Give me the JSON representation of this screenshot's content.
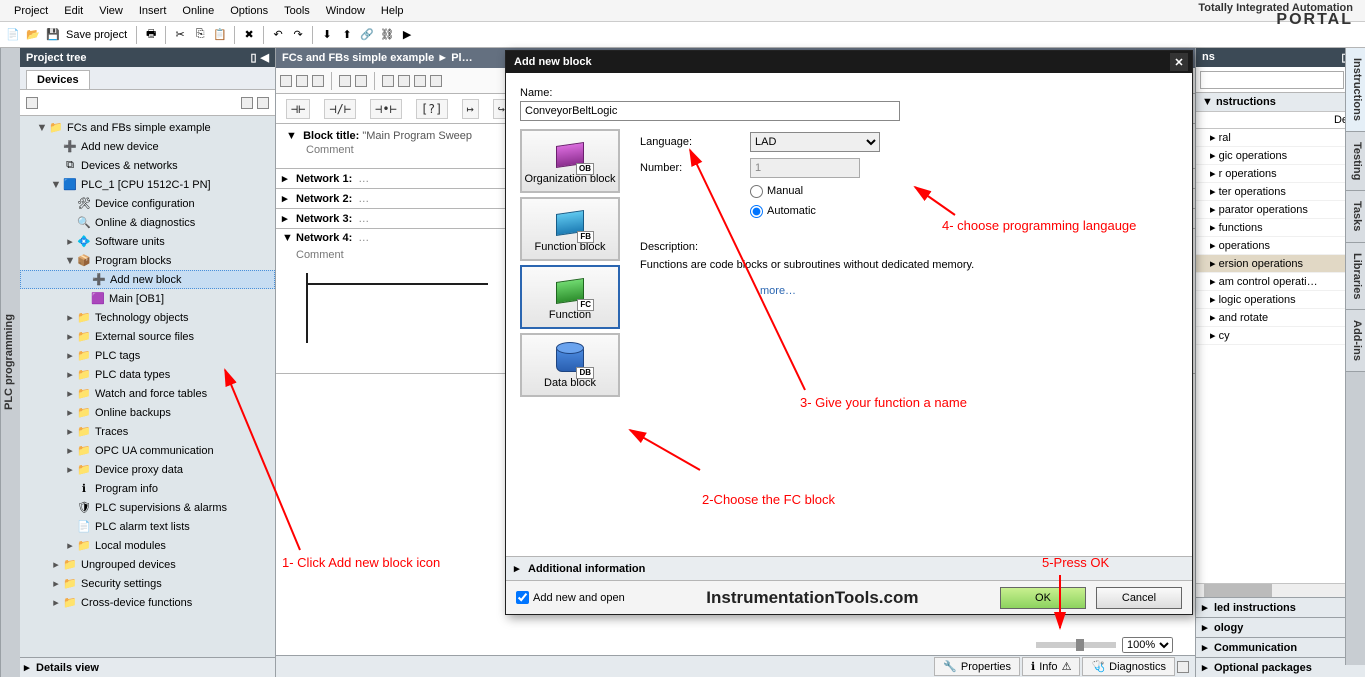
{
  "menubar": [
    "Project",
    "Edit",
    "View",
    "Insert",
    "Online",
    "Options",
    "Tools",
    "Window",
    "Help"
  ],
  "branding": {
    "line1": "Totally Integrated Automation",
    "line2": "PORTAL"
  },
  "toolbar": {
    "save": "Save project"
  },
  "leftstrip": "PLC programming",
  "project_tree": {
    "title": "Project tree",
    "devices_tab": "Devices",
    "items": [
      {
        "d": 1,
        "tw": "▼",
        "ic": "proj",
        "label": "FCs and FBs simple example"
      },
      {
        "d": 2,
        "tw": "",
        "ic": "add",
        "label": "Add new device"
      },
      {
        "d": 2,
        "tw": "",
        "ic": "net",
        "label": "Devices & networks"
      },
      {
        "d": 2,
        "tw": "▼",
        "ic": "plc",
        "label": "PLC_1 [CPU 1512C-1 PN]"
      },
      {
        "d": 3,
        "tw": "",
        "ic": "cfg",
        "label": "Device configuration"
      },
      {
        "d": 3,
        "tw": "",
        "ic": "diag",
        "label": "Online & diagnostics"
      },
      {
        "d": 3,
        "tw": "▸",
        "ic": "sw",
        "label": "Software units"
      },
      {
        "d": 3,
        "tw": "▼",
        "ic": "blk",
        "label": "Program blocks"
      },
      {
        "d": 4,
        "tw": "",
        "ic": "add",
        "label": "Add new block",
        "sel": true
      },
      {
        "d": 4,
        "tw": "",
        "ic": "ob",
        "label": "Main [OB1]"
      },
      {
        "d": 3,
        "tw": "▸",
        "ic": "fold",
        "label": "Technology objects"
      },
      {
        "d": 3,
        "tw": "▸",
        "ic": "fold",
        "label": "External source files"
      },
      {
        "d": 3,
        "tw": "▸",
        "ic": "fold",
        "label": "PLC tags"
      },
      {
        "d": 3,
        "tw": "▸",
        "ic": "fold",
        "label": "PLC data types"
      },
      {
        "d": 3,
        "tw": "▸",
        "ic": "fold",
        "label": "Watch and force tables"
      },
      {
        "d": 3,
        "tw": "▸",
        "ic": "fold",
        "label": "Online backups"
      },
      {
        "d": 3,
        "tw": "▸",
        "ic": "fold",
        "label": "Traces"
      },
      {
        "d": 3,
        "tw": "▸",
        "ic": "fold",
        "label": "OPC UA communication"
      },
      {
        "d": 3,
        "tw": "▸",
        "ic": "fold",
        "label": "Device proxy data"
      },
      {
        "d": 3,
        "tw": "",
        "ic": "info",
        "label": "Program info"
      },
      {
        "d": 3,
        "tw": "",
        "ic": "sup",
        "label": "PLC supervisions & alarms"
      },
      {
        "d": 3,
        "tw": "",
        "ic": "txt",
        "label": "PLC alarm text lists"
      },
      {
        "d": 3,
        "tw": "▸",
        "ic": "fold",
        "label": "Local modules"
      },
      {
        "d": 2,
        "tw": "▸",
        "ic": "fold",
        "label": "Ungrouped devices"
      },
      {
        "d": 2,
        "tw": "▸",
        "ic": "fold",
        "label": "Security settings"
      },
      {
        "d": 2,
        "tw": "▸",
        "ic": "fold",
        "label": "Cross-device functions"
      }
    ],
    "details": "Details view"
  },
  "editor": {
    "title": "FCs and FBs simple example  ►  Pl…",
    "block_title_label": "Block title:",
    "block_title_value": "\"Main Program Sweep",
    "comment": "Comment",
    "networks": [
      {
        "name": "Network 1:",
        "open": false
      },
      {
        "name": "Network 2:",
        "open": false
      },
      {
        "name": "Network 3:",
        "open": false
      },
      {
        "name": "Network 4:",
        "open": true,
        "comment": "Comment"
      }
    ],
    "lad_symbols": [
      "⊣⊢",
      "⊣/⊢",
      "⊣•⊢",
      "[?]",
      "↦",
      "↪"
    ],
    "zoom": "100%",
    "tabs": {
      "properties": "Properties",
      "info": "Info",
      "diagnostics": "Diagnostics"
    }
  },
  "instructions": {
    "title": "ns",
    "section1": "nstructions",
    "name_hdr": "",
    "desc_hdr": "De…",
    "items": [
      {
        "t": "ral"
      },
      {
        "t": "gic operations"
      },
      {
        "t": "r operations"
      },
      {
        "t": "ter operations"
      },
      {
        "t": "parator operations"
      },
      {
        "t": "functions"
      },
      {
        "t": " operations"
      },
      {
        "t": "ersion operations",
        "hl": true
      },
      {
        "t": "am control operati…"
      },
      {
        "t": "logic operations"
      },
      {
        "t": "and rotate"
      },
      {
        "t": "cy"
      }
    ],
    "ext": "led instructions",
    "tech": "ology",
    "comm": "Communication",
    "opt": "Optional packages"
  },
  "right_tabs": [
    "Instructions",
    "Testing",
    "Tasks",
    "Libraries",
    "Add-ins"
  ],
  "dialog": {
    "title": "Add new block",
    "name_label": "Name:",
    "name_value": "ConveyorBeltLogic",
    "lang_label": "Language:",
    "lang_value": "LAD",
    "number_label": "Number:",
    "number_value": "1",
    "manual": "Manual",
    "automatic": "Automatic",
    "desc_label": "Description:",
    "desc_text": "Functions are code blocks or subroutines without dedicated memory.",
    "more": "more…",
    "addinfo": "Additional information",
    "add_open": "Add new and open",
    "watermark": "InstrumentationTools.com",
    "ok": "OK",
    "cancel": "Cancel",
    "blocks": [
      {
        "key": "ob",
        "label": "Organization block",
        "tag": "OB"
      },
      {
        "key": "fb",
        "label": "Function block",
        "tag": "FB"
      },
      {
        "key": "fc",
        "label": "Function",
        "tag": "FC",
        "sel": true
      },
      {
        "key": "db",
        "label": "Data block",
        "tag": "DB"
      }
    ]
  },
  "annotations": {
    "a1": "1- Click Add new block icon",
    "a2": "2-Choose the FC block",
    "a3": "3- Give your function a name",
    "a4": "4- choose programming langauge",
    "a5": "5-Press OK"
  },
  "colors": {
    "red": "#ff0000"
  }
}
